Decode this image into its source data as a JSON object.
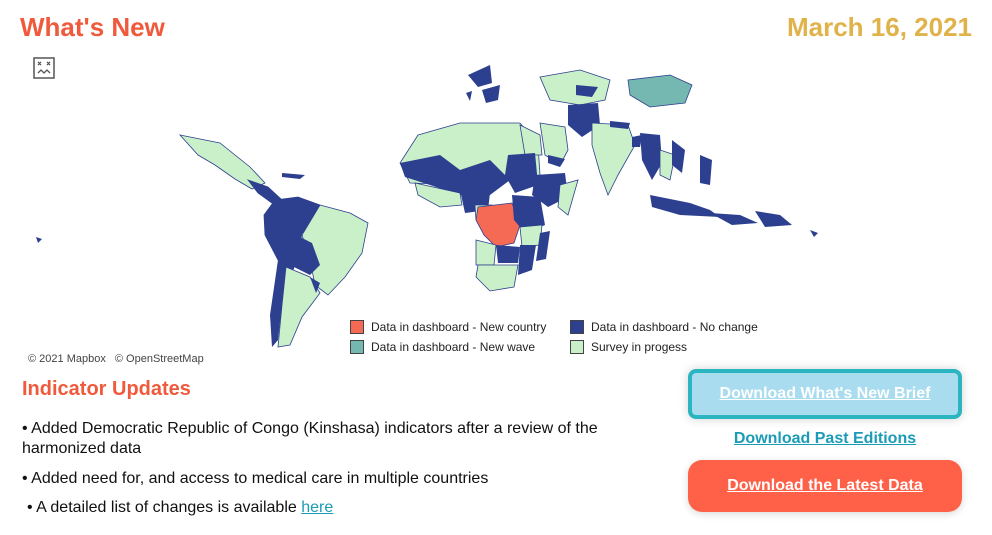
{
  "header": {
    "title": "What's New",
    "date": "March 16, 2021"
  },
  "map": {
    "attribution": [
      "© 2021 Mapbox",
      "© OpenStreetMap"
    ],
    "legend": [
      {
        "label": "Data in dashboard - New country",
        "color": "#f56a55"
      },
      {
        "label": "Data in dashboard - No change",
        "color": "#2d3f8f"
      },
      {
        "label": "Data in dashboard - New wave",
        "color": "#75b8b2"
      },
      {
        "label": "Survey in progess",
        "color": "#c9f0c8"
      }
    ]
  },
  "updates": {
    "title": "Indicator Updates",
    "items": [
      "• Added Democratic Republic of Congo (Kinshasa) indicators after a review of the harmonized data",
      "• Added need for, and access to medical care in multiple countries"
    ],
    "details_prefix": "• A detailed list of changes is available ",
    "details_link": "here"
  },
  "actions": {
    "brief": "Download What's New Brief",
    "past": "Download Past Editions",
    "latest": "Download the Latest Data"
  },
  "colors": {
    "title": "#f05a3c",
    "date": "#e0b24a",
    "link": "#1a9bb6",
    "brief_button": "#a8dcee",
    "latest_button": "#ff6148"
  }
}
